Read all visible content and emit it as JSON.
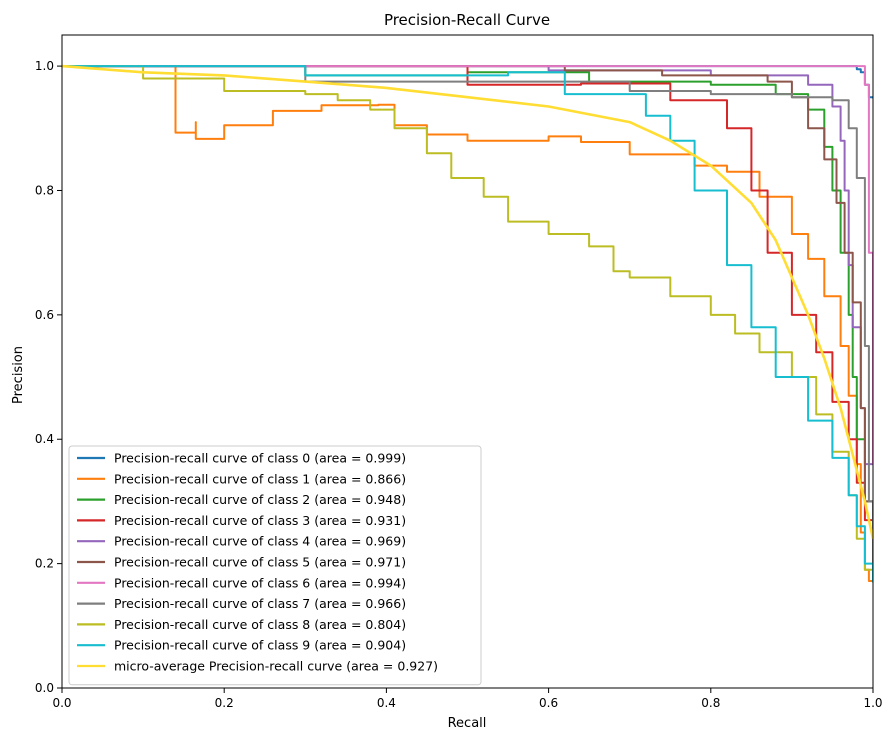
{
  "chart_data": {
    "type": "line",
    "title": "Precision-Recall Curve",
    "xlabel": "Recall",
    "ylabel": "Precision",
    "xlim": [
      0.0,
      1.0
    ],
    "ylim": [
      0.0,
      1.05
    ],
    "xticks": [
      "0.0",
      "0.2",
      "0.4",
      "0.6",
      "0.8",
      "1.0"
    ],
    "yticks": [
      "0.0",
      "0.2",
      "0.4",
      "0.6",
      "0.8",
      "1.0"
    ],
    "grid": false,
    "legend_position": "lower-left",
    "step": true,
    "series": [
      {
        "name": "Precision-recall curve of class 0 (area = 0.999)",
        "color": "#1f77b4",
        "points": [
          [
            0,
            1.0
          ],
          [
            0.975,
            1.0
          ],
          [
            0.98,
            0.995
          ],
          [
            0.985,
            0.99
          ],
          [
            0.99,
            0.97
          ],
          [
            0.995,
            0.95
          ],
          [
            1.0,
            0.948
          ]
        ]
      },
      {
        "name": "Precision-recall curve of class 1 (area = 0.866)",
        "color": "#ff7f0e",
        "points": [
          [
            0,
            1.0
          ],
          [
            0.14,
            0.893
          ],
          [
            0.165,
            0.91
          ],
          [
            0.165,
            0.883
          ],
          [
            0.2,
            0.905
          ],
          [
            0.26,
            0.928
          ],
          [
            0.32,
            0.937
          ],
          [
            0.39,
            0.938
          ],
          [
            0.41,
            0.905
          ],
          [
            0.45,
            0.89
          ],
          [
            0.5,
            0.88
          ],
          [
            0.6,
            0.887
          ],
          [
            0.64,
            0.878
          ],
          [
            0.7,
            0.858
          ],
          [
            0.78,
            0.84
          ],
          [
            0.82,
            0.83
          ],
          [
            0.86,
            0.79
          ],
          [
            0.9,
            0.73
          ],
          [
            0.92,
            0.69
          ],
          [
            0.94,
            0.63
          ],
          [
            0.96,
            0.55
          ],
          [
            0.97,
            0.47
          ],
          [
            0.98,
            0.36
          ],
          [
            0.985,
            0.25
          ],
          [
            0.99,
            0.19
          ],
          [
            0.995,
            0.172
          ],
          [
            1.0,
            0.17
          ]
        ]
      },
      {
        "name": "Precision-recall curve of class 2 (area = 0.948)",
        "color": "#2ca02c",
        "points": [
          [
            0,
            1.0
          ],
          [
            0.3,
            0.985
          ],
          [
            0.5,
            0.99
          ],
          [
            0.65,
            0.975
          ],
          [
            0.8,
            0.97
          ],
          [
            0.88,
            0.955
          ],
          [
            0.92,
            0.93
          ],
          [
            0.94,
            0.87
          ],
          [
            0.95,
            0.8
          ],
          [
            0.96,
            0.7
          ],
          [
            0.97,
            0.6
          ],
          [
            0.975,
            0.5
          ],
          [
            0.98,
            0.4
          ],
          [
            0.99,
            0.3
          ],
          [
            1.0,
            0.17
          ]
        ]
      },
      {
        "name": "Precision-recall curve of class 3 (area = 0.931)",
        "color": "#d62728",
        "points": [
          [
            0,
            1.0
          ],
          [
            0.5,
            0.97
          ],
          [
            0.64,
            0.972
          ],
          [
            0.75,
            0.945
          ],
          [
            0.82,
            0.9
          ],
          [
            0.85,
            0.8
          ],
          [
            0.87,
            0.7
          ],
          [
            0.9,
            0.6
          ],
          [
            0.93,
            0.54
          ],
          [
            0.95,
            0.46
          ],
          [
            0.97,
            0.4
          ],
          [
            0.98,
            0.33
          ],
          [
            0.99,
            0.27
          ],
          [
            1.0,
            0.25
          ]
        ]
      },
      {
        "name": "Precision-recall curve of class 4 (area = 0.969)",
        "color": "#9467bd",
        "points": [
          [
            0,
            1.0
          ],
          [
            0.6,
            0.993
          ],
          [
            0.8,
            0.985
          ],
          [
            0.92,
            0.97
          ],
          [
            0.95,
            0.935
          ],
          [
            0.96,
            0.88
          ],
          [
            0.965,
            0.8
          ],
          [
            0.97,
            0.68
          ],
          [
            0.975,
            0.58
          ],
          [
            0.985,
            0.45
          ],
          [
            0.99,
            0.36
          ],
          [
            1.0,
            0.36
          ]
        ]
      },
      {
        "name": "Precision-recall curve of class 5 (area = 0.971)",
        "color": "#8c564b",
        "points": [
          [
            0,
            1.0
          ],
          [
            0.62,
            0.993
          ],
          [
            0.74,
            0.985
          ],
          [
            0.87,
            0.975
          ],
          [
            0.9,
            0.95
          ],
          [
            0.92,
            0.9
          ],
          [
            0.94,
            0.85
          ],
          [
            0.955,
            0.78
          ],
          [
            0.965,
            0.7
          ],
          [
            0.975,
            0.62
          ],
          [
            0.985,
            0.45
          ],
          [
            0.99,
            0.3
          ],
          [
            1.0,
            0.25
          ]
        ]
      },
      {
        "name": "Precision-recall curve of class 6 (area = 0.994)",
        "color": "#e377c2",
        "points": [
          [
            0,
            1.0
          ],
          [
            0.985,
            1.0
          ],
          [
            0.99,
            0.97
          ],
          [
            0.995,
            0.7
          ],
          [
            1.0,
            0.36
          ]
        ]
      },
      {
        "name": "Precision-recall curve of class 7 (area = 0.966)",
        "color": "#7f7f7f",
        "points": [
          [
            0,
            1.0
          ],
          [
            0.3,
            0.975
          ],
          [
            0.5,
            0.975
          ],
          [
            0.7,
            0.96
          ],
          [
            0.8,
            0.955
          ],
          [
            0.9,
            0.95
          ],
          [
            0.95,
            0.945
          ],
          [
            0.97,
            0.9
          ],
          [
            0.98,
            0.82
          ],
          [
            0.99,
            0.55
          ],
          [
            0.995,
            0.3
          ],
          [
            1.0,
            0.17
          ]
        ]
      },
      {
        "name": "Precision-recall curve of class 8 (area = 0.804)",
        "color": "#bcbd22",
        "points": [
          [
            0,
            1.0
          ],
          [
            0.1,
            0.98
          ],
          [
            0.2,
            0.96
          ],
          [
            0.3,
            0.955
          ],
          [
            0.34,
            0.945
          ],
          [
            0.38,
            0.93
          ],
          [
            0.41,
            0.9
          ],
          [
            0.45,
            0.86
          ],
          [
            0.48,
            0.82
          ],
          [
            0.52,
            0.79
          ],
          [
            0.55,
            0.75
          ],
          [
            0.6,
            0.73
          ],
          [
            0.65,
            0.71
          ],
          [
            0.68,
            0.67
          ],
          [
            0.7,
            0.66
          ],
          [
            0.75,
            0.63
          ],
          [
            0.8,
            0.6
          ],
          [
            0.83,
            0.57
          ],
          [
            0.86,
            0.54
          ],
          [
            0.9,
            0.5
          ],
          [
            0.93,
            0.44
          ],
          [
            0.95,
            0.38
          ],
          [
            0.97,
            0.31
          ],
          [
            0.98,
            0.24
          ],
          [
            0.99,
            0.19
          ],
          [
            1.0,
            0.17
          ]
        ]
      },
      {
        "name": "Precision-recall curve of class 9 (area = 0.904)",
        "color": "#17becf",
        "points": [
          [
            0,
            1.0
          ],
          [
            0.3,
            0.985
          ],
          [
            0.55,
            0.99
          ],
          [
            0.62,
            0.955
          ],
          [
            0.67,
            0.955
          ],
          [
            0.72,
            0.92
          ],
          [
            0.75,
            0.88
          ],
          [
            0.78,
            0.8
          ],
          [
            0.82,
            0.68
          ],
          [
            0.85,
            0.58
          ],
          [
            0.88,
            0.5
          ],
          [
            0.92,
            0.43
          ],
          [
            0.95,
            0.37
          ],
          [
            0.97,
            0.31
          ],
          [
            0.98,
            0.26
          ],
          [
            0.99,
            0.2
          ],
          [
            1.0,
            0.17
          ]
        ]
      },
      {
        "name": "micro-average Precision-recall curve (area = 0.927)",
        "color": "#ffdd33",
        "smooth": true,
        "points": [
          [
            0,
            1.0
          ],
          [
            0.1,
            0.99
          ],
          [
            0.2,
            0.985
          ],
          [
            0.3,
            0.975
          ],
          [
            0.4,
            0.965
          ],
          [
            0.5,
            0.95
          ],
          [
            0.6,
            0.935
          ],
          [
            0.7,
            0.91
          ],
          [
            0.75,
            0.88
          ],
          [
            0.8,
            0.84
          ],
          [
            0.85,
            0.78
          ],
          [
            0.88,
            0.72
          ],
          [
            0.9,
            0.66
          ],
          [
            0.92,
            0.6
          ],
          [
            0.94,
            0.53
          ],
          [
            0.96,
            0.45
          ],
          [
            0.97,
            0.4
          ],
          [
            0.98,
            0.35
          ],
          [
            0.99,
            0.3
          ],
          [
            1.0,
            0.24
          ]
        ]
      }
    ]
  }
}
